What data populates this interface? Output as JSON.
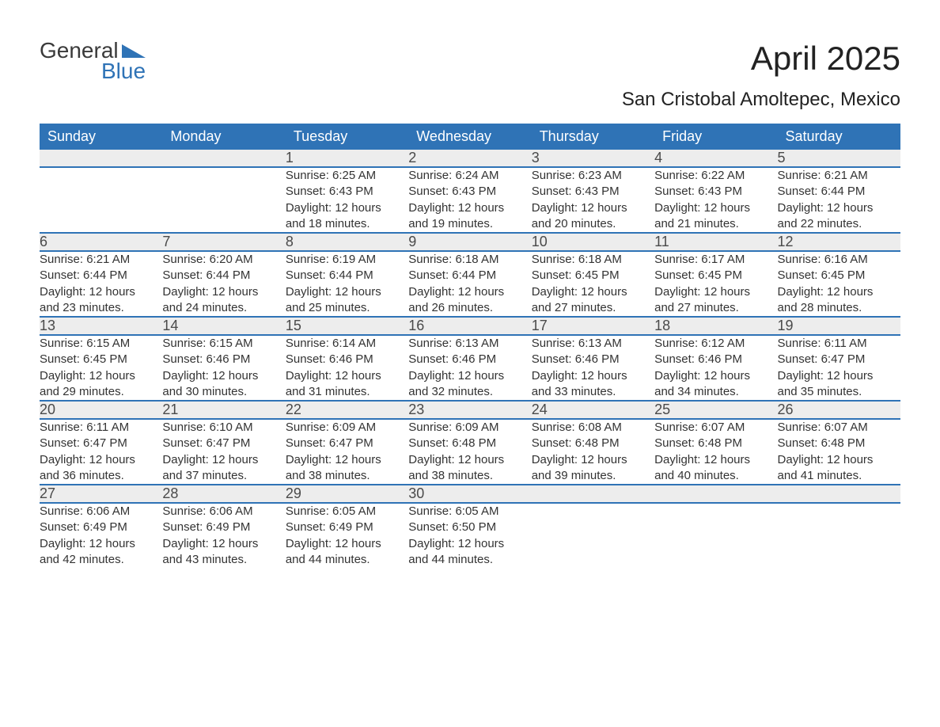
{
  "brand": {
    "top": "General",
    "bottom": "Blue",
    "wedge_color": "#2f73b6"
  },
  "header": {
    "month": "April 2025",
    "location": "San Cristobal Amoltepec, Mexico"
  },
  "colors": {
    "header_bg": "#2f73b6",
    "header_text": "#ffffff",
    "daynum_bg": "#ededed",
    "text": "#333333",
    "rule": "#2f73b6"
  },
  "dow": [
    "Sunday",
    "Monday",
    "Tuesday",
    "Wednesday",
    "Thursday",
    "Friday",
    "Saturday"
  ],
  "weeks": [
    [
      null,
      null,
      {
        "n": "1",
        "sr": "Sunrise: 6:25 AM",
        "ss": "Sunset: 6:43 PM",
        "d1": "Daylight: 12 hours",
        "d2": "and 18 minutes."
      },
      {
        "n": "2",
        "sr": "Sunrise: 6:24 AM",
        "ss": "Sunset: 6:43 PM",
        "d1": "Daylight: 12 hours",
        "d2": "and 19 minutes."
      },
      {
        "n": "3",
        "sr": "Sunrise: 6:23 AM",
        "ss": "Sunset: 6:43 PM",
        "d1": "Daylight: 12 hours",
        "d2": "and 20 minutes."
      },
      {
        "n": "4",
        "sr": "Sunrise: 6:22 AM",
        "ss": "Sunset: 6:43 PM",
        "d1": "Daylight: 12 hours",
        "d2": "and 21 minutes."
      },
      {
        "n": "5",
        "sr": "Sunrise: 6:21 AM",
        "ss": "Sunset: 6:44 PM",
        "d1": "Daylight: 12 hours",
        "d2": "and 22 minutes."
      }
    ],
    [
      {
        "n": "6",
        "sr": "Sunrise: 6:21 AM",
        "ss": "Sunset: 6:44 PM",
        "d1": "Daylight: 12 hours",
        "d2": "and 23 minutes."
      },
      {
        "n": "7",
        "sr": "Sunrise: 6:20 AM",
        "ss": "Sunset: 6:44 PM",
        "d1": "Daylight: 12 hours",
        "d2": "and 24 minutes."
      },
      {
        "n": "8",
        "sr": "Sunrise: 6:19 AM",
        "ss": "Sunset: 6:44 PM",
        "d1": "Daylight: 12 hours",
        "d2": "and 25 minutes."
      },
      {
        "n": "9",
        "sr": "Sunrise: 6:18 AM",
        "ss": "Sunset: 6:44 PM",
        "d1": "Daylight: 12 hours",
        "d2": "and 26 minutes."
      },
      {
        "n": "10",
        "sr": "Sunrise: 6:18 AM",
        "ss": "Sunset: 6:45 PM",
        "d1": "Daylight: 12 hours",
        "d2": "and 27 minutes."
      },
      {
        "n": "11",
        "sr": "Sunrise: 6:17 AM",
        "ss": "Sunset: 6:45 PM",
        "d1": "Daylight: 12 hours",
        "d2": "and 27 minutes."
      },
      {
        "n": "12",
        "sr": "Sunrise: 6:16 AM",
        "ss": "Sunset: 6:45 PM",
        "d1": "Daylight: 12 hours",
        "d2": "and 28 minutes."
      }
    ],
    [
      {
        "n": "13",
        "sr": "Sunrise: 6:15 AM",
        "ss": "Sunset: 6:45 PM",
        "d1": "Daylight: 12 hours",
        "d2": "and 29 minutes."
      },
      {
        "n": "14",
        "sr": "Sunrise: 6:15 AM",
        "ss": "Sunset: 6:46 PM",
        "d1": "Daylight: 12 hours",
        "d2": "and 30 minutes."
      },
      {
        "n": "15",
        "sr": "Sunrise: 6:14 AM",
        "ss": "Sunset: 6:46 PM",
        "d1": "Daylight: 12 hours",
        "d2": "and 31 minutes."
      },
      {
        "n": "16",
        "sr": "Sunrise: 6:13 AM",
        "ss": "Sunset: 6:46 PM",
        "d1": "Daylight: 12 hours",
        "d2": "and 32 minutes."
      },
      {
        "n": "17",
        "sr": "Sunrise: 6:13 AM",
        "ss": "Sunset: 6:46 PM",
        "d1": "Daylight: 12 hours",
        "d2": "and 33 minutes."
      },
      {
        "n": "18",
        "sr": "Sunrise: 6:12 AM",
        "ss": "Sunset: 6:46 PM",
        "d1": "Daylight: 12 hours",
        "d2": "and 34 minutes."
      },
      {
        "n": "19",
        "sr": "Sunrise: 6:11 AM",
        "ss": "Sunset: 6:47 PM",
        "d1": "Daylight: 12 hours",
        "d2": "and 35 minutes."
      }
    ],
    [
      {
        "n": "20",
        "sr": "Sunrise: 6:11 AM",
        "ss": "Sunset: 6:47 PM",
        "d1": "Daylight: 12 hours",
        "d2": "and 36 minutes."
      },
      {
        "n": "21",
        "sr": "Sunrise: 6:10 AM",
        "ss": "Sunset: 6:47 PM",
        "d1": "Daylight: 12 hours",
        "d2": "and 37 minutes."
      },
      {
        "n": "22",
        "sr": "Sunrise: 6:09 AM",
        "ss": "Sunset: 6:47 PM",
        "d1": "Daylight: 12 hours",
        "d2": "and 38 minutes."
      },
      {
        "n": "23",
        "sr": "Sunrise: 6:09 AM",
        "ss": "Sunset: 6:48 PM",
        "d1": "Daylight: 12 hours",
        "d2": "and 38 minutes."
      },
      {
        "n": "24",
        "sr": "Sunrise: 6:08 AM",
        "ss": "Sunset: 6:48 PM",
        "d1": "Daylight: 12 hours",
        "d2": "and 39 minutes."
      },
      {
        "n": "25",
        "sr": "Sunrise: 6:07 AM",
        "ss": "Sunset: 6:48 PM",
        "d1": "Daylight: 12 hours",
        "d2": "and 40 minutes."
      },
      {
        "n": "26",
        "sr": "Sunrise: 6:07 AM",
        "ss": "Sunset: 6:48 PM",
        "d1": "Daylight: 12 hours",
        "d2": "and 41 minutes."
      }
    ],
    [
      {
        "n": "27",
        "sr": "Sunrise: 6:06 AM",
        "ss": "Sunset: 6:49 PM",
        "d1": "Daylight: 12 hours",
        "d2": "and 42 minutes."
      },
      {
        "n": "28",
        "sr": "Sunrise: 6:06 AM",
        "ss": "Sunset: 6:49 PM",
        "d1": "Daylight: 12 hours",
        "d2": "and 43 minutes."
      },
      {
        "n": "29",
        "sr": "Sunrise: 6:05 AM",
        "ss": "Sunset: 6:49 PM",
        "d1": "Daylight: 12 hours",
        "d2": "and 44 minutes."
      },
      {
        "n": "30",
        "sr": "Sunrise: 6:05 AM",
        "ss": "Sunset: 6:50 PM",
        "d1": "Daylight: 12 hours",
        "d2": "and 44 minutes."
      },
      null,
      null,
      null
    ]
  ]
}
